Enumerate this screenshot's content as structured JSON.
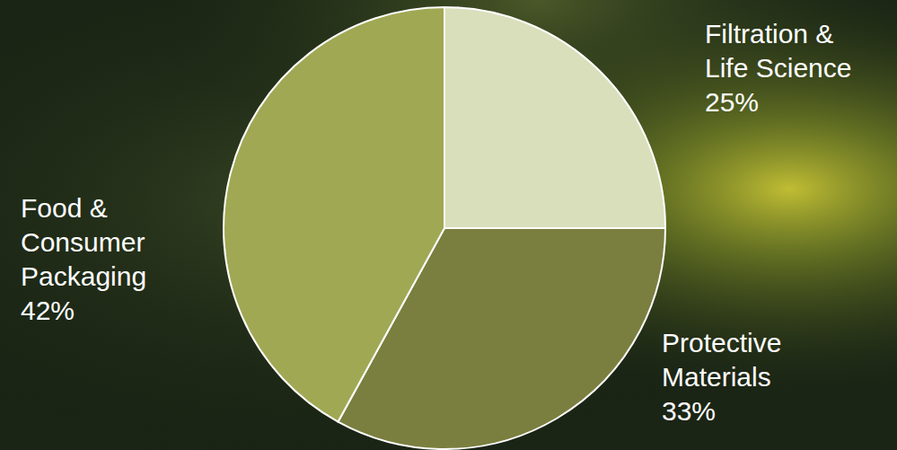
{
  "chart_data": {
    "type": "pie",
    "categories": [
      "Filtration & Life Science",
      "Protective Materials",
      "Food & Consumer Packaging"
    ],
    "values": [
      25,
      33,
      42
    ],
    "value_labels": [
      "25%",
      "33%",
      "42%"
    ],
    "colors": [
      "#d9dfbb",
      "#7a7f3f",
      "#a0a854"
    ],
    "data_labels": true
  }
}
